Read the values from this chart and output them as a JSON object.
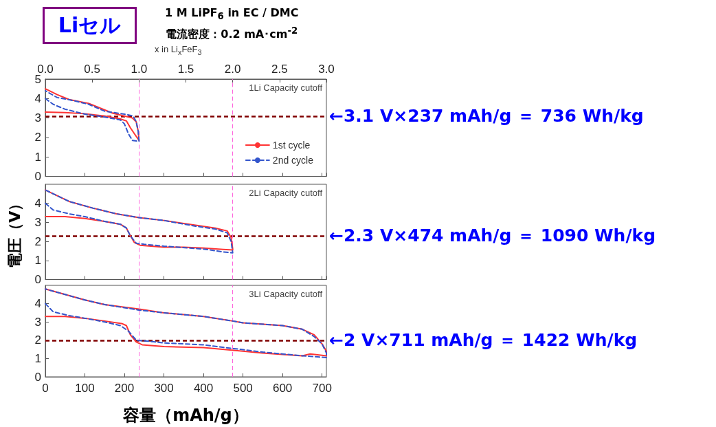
{
  "chart_data": [
    {
      "type": "line",
      "title": "Liセル",
      "subtitle": "1 M LiPF$_{6}$ in EC / DMC\n電流密度：0.2 mA･cm$^{-2}$",
      "x2label": "x in Li$_{x}$FeF$_{3}$",
      "annotations": [
        "1Li Capacity cutoff"
      ],
      "xlim": [
        0,
        711
      ],
      "ylim": [
        0,
        5
      ],
      "yticks": [
        0,
        1,
        2,
        3,
        4,
        5
      ],
      "x2lim": [
        0,
        3
      ],
      "x2ticks": [
        {
          "value": 0,
          "label": "0.0"
        },
        {
          "value": 0.5,
          "label": "0.5"
        },
        {
          "value": 1,
          "label": "1.0"
        },
        {
          "value": 1.5,
          "label": "1.5"
        },
        {
          "value": 2,
          "label": "2.0"
        },
        {
          "value": 2.5,
          "label": "2.5"
        },
        {
          "value": 3,
          "label": "3.0"
        }
      ],
      "tick_labels": "y",
      "legend": "right",
      "grid": false,
      "marker": "none",
      "series": [
        {
          "name": "1st cycle",
          "color": "#ff3333",
          "line_style": "solid",
          "x": [
            0,
            50,
            100,
            150,
            190,
            205,
            215,
            225,
            237,
            235,
            230,
            220,
            200,
            170,
            140,
            110,
            60,
            30,
            0
          ],
          "values": [
            3.3,
            3.28,
            3.22,
            3.1,
            2.95,
            2.85,
            2.5,
            2.2,
            1.85,
            2.3,
            2.8,
            3.0,
            3.1,
            3.25,
            3.5,
            3.75,
            3.95,
            4.2,
            4.5
          ]
        },
        {
          "name": "2nd cycle",
          "color": "#3355cc",
          "line_style": "dashed",
          "x": [
            0,
            20,
            50,
            100,
            150,
            190,
            200,
            210,
            220,
            237,
            235,
            230,
            222,
            200,
            150,
            110,
            70,
            30,
            0
          ],
          "values": [
            4.0,
            3.7,
            3.45,
            3.2,
            3.05,
            2.9,
            2.7,
            2.2,
            1.85,
            1.8,
            2.3,
            2.8,
            3.1,
            3.2,
            3.35,
            3.7,
            3.9,
            4.05,
            4.4
          ]
        }
      ],
      "ref_lines": [
        {
          "axis": "y",
          "value": 3.1,
          "label": "←3.1 V×237 mAh/g ＝ 736 Wh/kg",
          "color": "#800000",
          "line_style": "dashed"
        },
        {
          "axis": "x",
          "value": 237,
          "label": null,
          "color": "#ff66dd",
          "line_style": "dashed"
        },
        {
          "axis": "x",
          "value": 474,
          "label": null,
          "color": "#ff66dd",
          "line_style": "dashed"
        }
      ]
    },
    {
      "type": "line",
      "ylabel": "電圧（V）",
      "annotations": [
        "2Li Capacity cutoff"
      ],
      "xlim": [
        0,
        711
      ],
      "ylim": [
        0,
        5
      ],
      "yticks": [
        0,
        1,
        2,
        3,
        4
      ],
      "tick_labels": "y",
      "grid": false,
      "marker": "none",
      "series": [
        {
          "color": "#ff3333",
          "line_style": "solid",
          "x": [
            0,
            50,
            100,
            150,
            190,
            205,
            215,
            225,
            240,
            300,
            350,
            400,
            450,
            474,
            474,
            470,
            460,
            430,
            380,
            300,
            237,
            180,
            120,
            60,
            20,
            0
          ],
          "values": [
            3.3,
            3.3,
            3.2,
            3.05,
            2.9,
            2.7,
            2.3,
            1.95,
            1.8,
            1.7,
            1.7,
            1.65,
            1.58,
            1.55,
            1.6,
            2.2,
            2.55,
            2.7,
            2.85,
            3.1,
            3.25,
            3.45,
            3.75,
            4.1,
            4.5,
            4.7
          ]
        },
        {
          "color": "#3355cc",
          "line_style": "dashed",
          "x": [
            0,
            20,
            60,
            100,
            150,
            190,
            205,
            215,
            230,
            250,
            300,
            400,
            450,
            474,
            470,
            460,
            430,
            380,
            300,
            237,
            180,
            120,
            60,
            20,
            0
          ],
          "values": [
            4.0,
            3.65,
            3.45,
            3.3,
            3.05,
            2.9,
            2.7,
            2.3,
            1.9,
            1.85,
            1.75,
            1.6,
            1.45,
            1.4,
            2.0,
            2.45,
            2.65,
            2.8,
            3.1,
            3.25,
            3.45,
            3.75,
            4.1,
            4.5,
            4.7
          ]
        }
      ],
      "ref_lines": [
        {
          "axis": "y",
          "value": 2.3,
          "label": "←2.3 V×474 mAh/g ＝ 1090 Wh/kg",
          "color": "#800000",
          "line_style": "dashed"
        },
        {
          "axis": "x",
          "value": 237,
          "label": null,
          "color": "#ff66dd",
          "line_style": "dashed"
        },
        {
          "axis": "x",
          "value": 474,
          "label": null,
          "color": "#ff66dd",
          "line_style": "dashed"
        }
      ]
    },
    {
      "type": "line",
      "xlabel": "容量（mAh/g）",
      "annotations": [
        "3Li Capacity cutoff"
      ],
      "xlim": [
        0,
        711
      ],
      "xticks": [
        0,
        100,
        200,
        300,
        400,
        500,
        600,
        700
      ],
      "ylim": [
        0,
        5
      ],
      "yticks": [
        0,
        1,
        2,
        3,
        4
      ],
      "grid": false,
      "marker": "none",
      "series": [
        {
          "color": "#ff3333",
          "line_style": "solid",
          "x": [
            0,
            50,
            100,
            150,
            195,
            205,
            215,
            230,
            245,
            300,
            400,
            500,
            550,
            600,
            650,
            670,
            711,
            711,
            700,
            680,
            650,
            600,
            500,
            474,
            400,
            300,
            237,
            150,
            100,
            50,
            0
          ],
          "values": [
            3.3,
            3.3,
            3.2,
            3.05,
            2.9,
            2.8,
            2.3,
            1.9,
            1.75,
            1.65,
            1.6,
            1.4,
            1.3,
            1.22,
            1.15,
            1.25,
            1.15,
            1.4,
            1.8,
            2.3,
            2.6,
            2.8,
            2.95,
            3.05,
            3.3,
            3.5,
            3.7,
            3.95,
            4.2,
            4.5,
            4.8
          ]
        },
        {
          "color": "#3355cc",
          "line_style": "dashed",
          "x": [
            0,
            20,
            60,
            100,
            150,
            190,
            210,
            230,
            260,
            300,
            400,
            474,
            550,
            600,
            650,
            711,
            711,
            700,
            680,
            650,
            600,
            500,
            474,
            400,
            300,
            237,
            150,
            100,
            50,
            0
          ],
          "values": [
            4.0,
            3.55,
            3.35,
            3.2,
            3.0,
            2.8,
            2.5,
            2.0,
            1.95,
            1.85,
            1.75,
            1.55,
            1.35,
            1.25,
            1.15,
            1.05,
            1.3,
            1.8,
            2.2,
            2.6,
            2.8,
            2.95,
            3.05,
            3.3,
            3.5,
            3.65,
            3.95,
            4.2,
            4.5,
            4.8
          ]
        }
      ],
      "ref_lines": [
        {
          "axis": "y",
          "value": 2,
          "label": "←2 V×711 mAh/g ＝ 1422 Wh/kg",
          "color": "#800000",
          "line_style": "dashed"
        },
        {
          "axis": "x",
          "value": 237,
          "label": null,
          "color": "#ff66dd",
          "line_style": "dashed"
        },
        {
          "axis": "x",
          "value": 474,
          "label": null,
          "color": "#ff66dd",
          "line_style": "dashed"
        }
      ]
    }
  ]
}
